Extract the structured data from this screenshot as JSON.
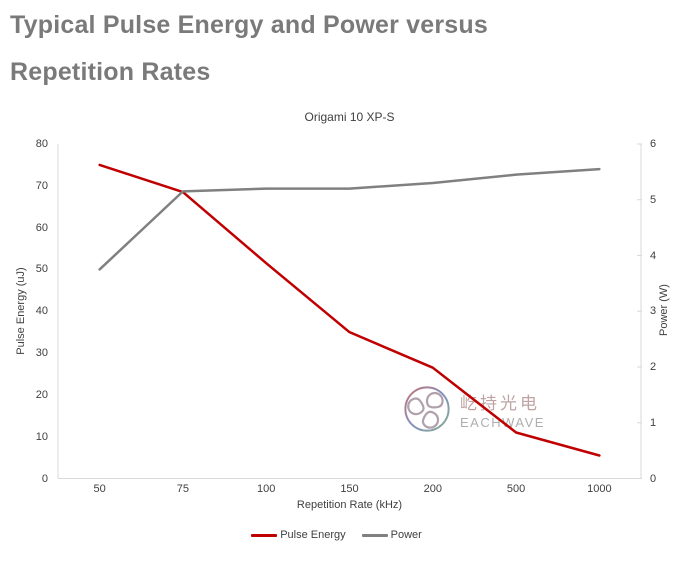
{
  "page": {
    "title_line1": "Typical Pulse Energy and Power versus",
    "title_line2": "Repetition Rates"
  },
  "chart_data": {
    "type": "line",
    "title": "Origami 10 XP-S",
    "xlabel": "Repetition Rate (kHz)",
    "ylabel_left": "Pulse Energy (uJ)",
    "ylabel_right": "Power (W)",
    "categories": [
      "50",
      "75",
      "100",
      "150",
      "200",
      "500",
      "1000"
    ],
    "series": [
      {
        "name": "Pulse Energy",
        "axis": "left",
        "color": "#c00000",
        "values": [
          75,
          68.5,
          51.5,
          35,
          26.5,
          11,
          5.5
        ]
      },
      {
        "name": "Power",
        "axis": "right",
        "color": "#808080",
        "values": [
          3.75,
          5.15,
          5.2,
          5.2,
          5.3,
          5.45,
          5.55
        ]
      }
    ],
    "left_axis": {
      "min": 0,
      "max": 80,
      "step": 10
    },
    "right_axis": {
      "min": 0,
      "max": 6,
      "step": 1
    },
    "grid": false,
    "legend_position": "bottom"
  },
  "watermark": {
    "name_cn": "屹持光电",
    "name_en": "EACHWAVE"
  },
  "colors": {
    "title_text": "#7a7a7a",
    "chart_text": "#404040",
    "axis_line": "#d9d9d9",
    "pulse_energy_line": "#c00000",
    "power_line": "#808080"
  }
}
